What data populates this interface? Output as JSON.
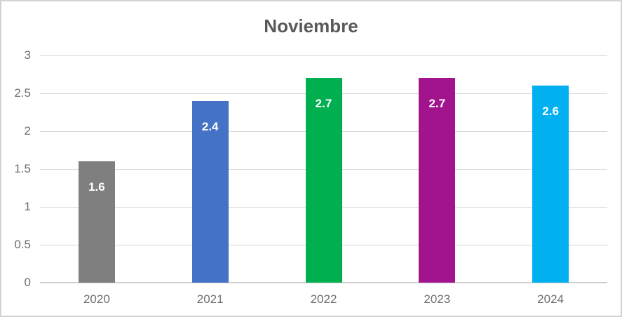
{
  "chart_data": {
    "type": "bar",
    "title": "Noviembre",
    "categories": [
      "2020",
      "2021",
      "2022",
      "2023",
      "2024"
    ],
    "values": [
      1.6,
      2.4,
      2.7,
      2.7,
      2.6
    ],
    "data_labels": [
      "1.6",
      "2.4",
      "2.7",
      "2.7",
      "2.6"
    ],
    "bar_colors": [
      "#7f7f7f",
      "#4472c4",
      "#00b050",
      "#a2138e",
      "#00b0f0"
    ],
    "y_ticks": [
      "0",
      "0.5",
      "1",
      "1.5",
      "2",
      "2.5",
      "3"
    ],
    "y_tick_values": [
      0,
      0.5,
      1,
      1.5,
      2,
      2.5,
      3
    ],
    "ylim": [
      0,
      3
    ],
    "xlabel": "",
    "ylabel": "",
    "grid": "horizontal",
    "legend": "none",
    "colors": {
      "title_text": "#595959",
      "tick_text": "#6e6e6e",
      "gridline": "#d9d9d9",
      "axis_line": "#d0d0d0",
      "data_label_text": "#ffffff",
      "canvas_border": "#d2d2d2",
      "background": "#ffffff"
    }
  }
}
